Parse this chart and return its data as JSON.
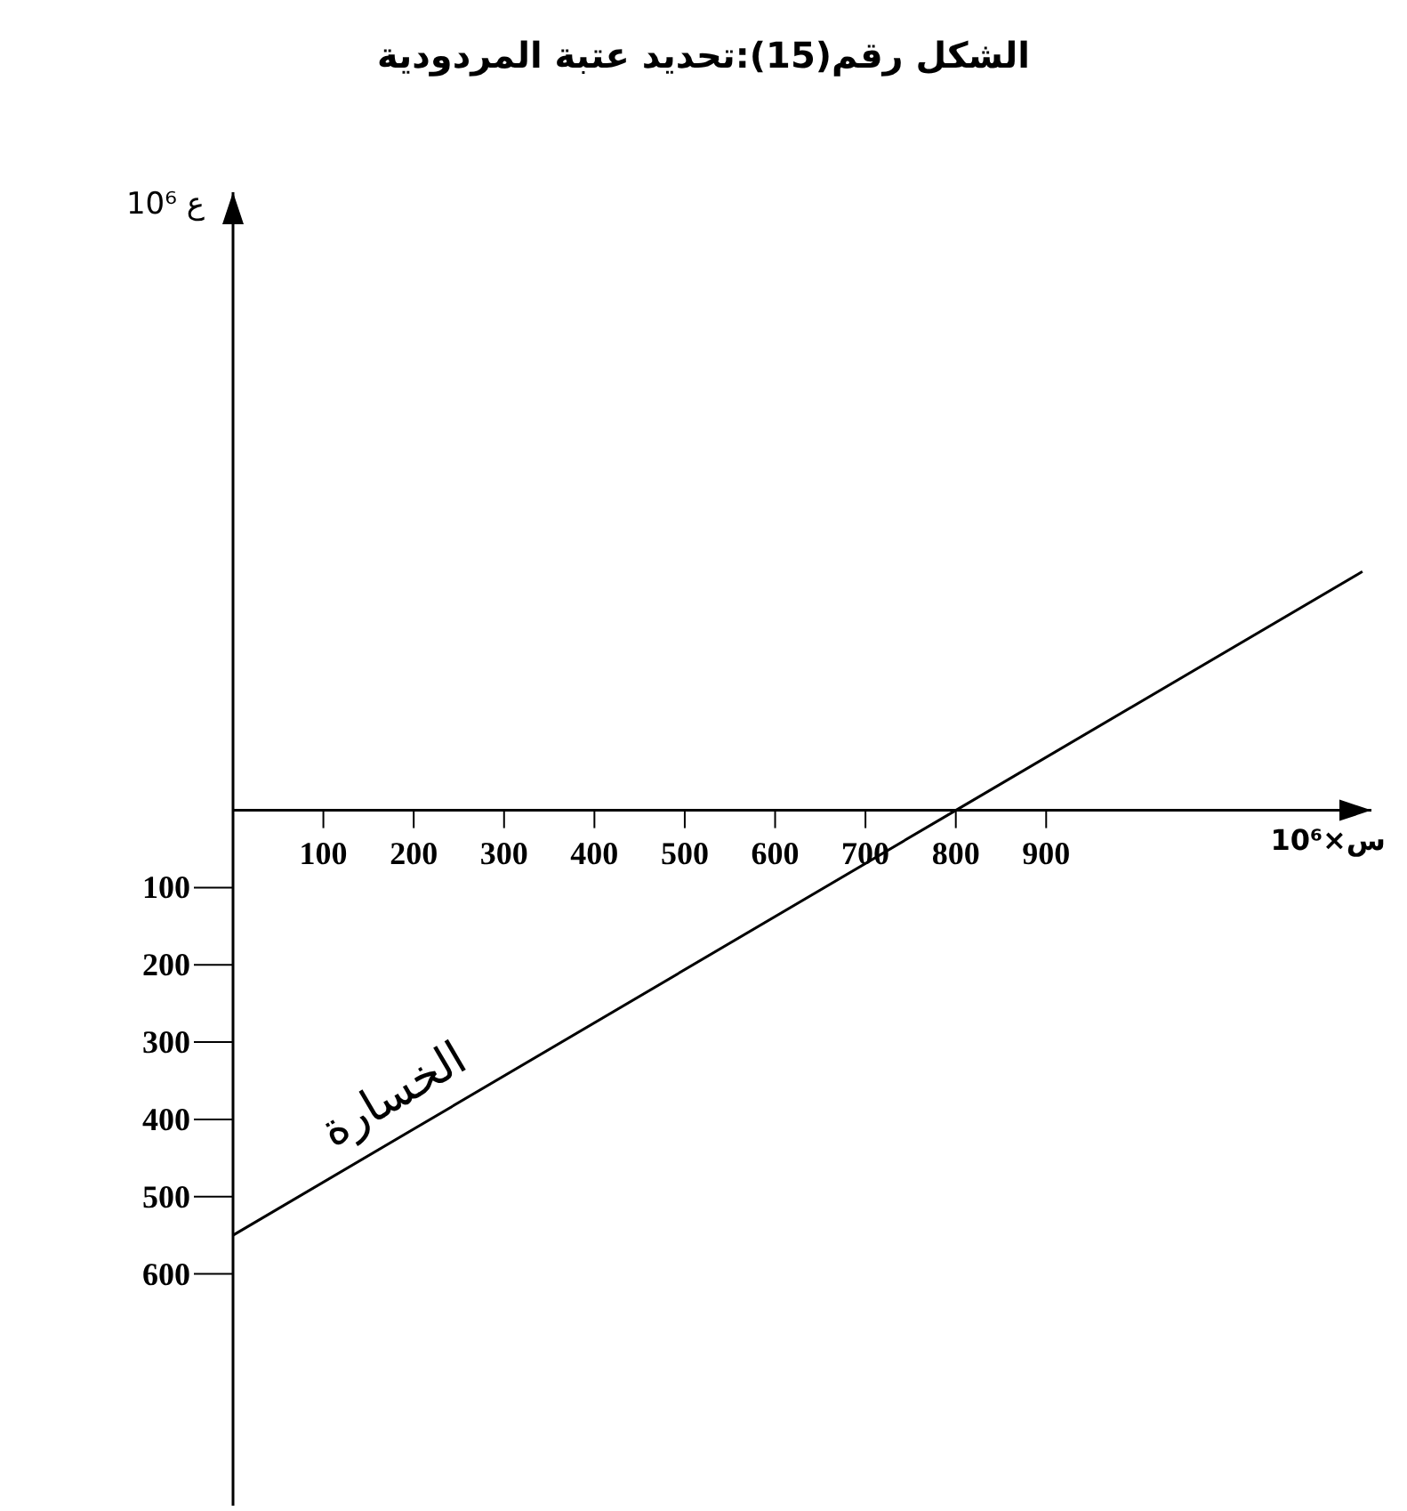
{
  "chart_data": {
    "type": "line",
    "title": "الشكل رقم(15):تحديد عتبة المردودية",
    "xlabel": "س×10⁶",
    "ylabel": "ع 10⁶",
    "x": [
      0,
      800,
      1250
    ],
    "series": [
      {
        "color": "#000000",
        "values": [
          -550,
          0,
          309
        ]
      }
    ],
    "xlim": [
      0,
      1260
    ],
    "ylim": [
      -900,
      800
    ],
    "xticks": [
      100,
      200,
      300,
      400,
      500,
      600,
      700,
      800,
      900
    ],
    "yticks": [
      {
        "value": -100,
        "label": "100"
      },
      {
        "value": -200,
        "label": "200"
      },
      {
        "value": -300,
        "label": "300"
      },
      {
        "value": -400,
        "label": "400"
      },
      {
        "value": -500,
        "label": "500"
      },
      {
        "value": -600,
        "label": "600"
      }
    ],
    "annotations": [
      "الخسارة"
    ],
    "grid": false,
    "marker": "none",
    "line_style": "solid"
  }
}
